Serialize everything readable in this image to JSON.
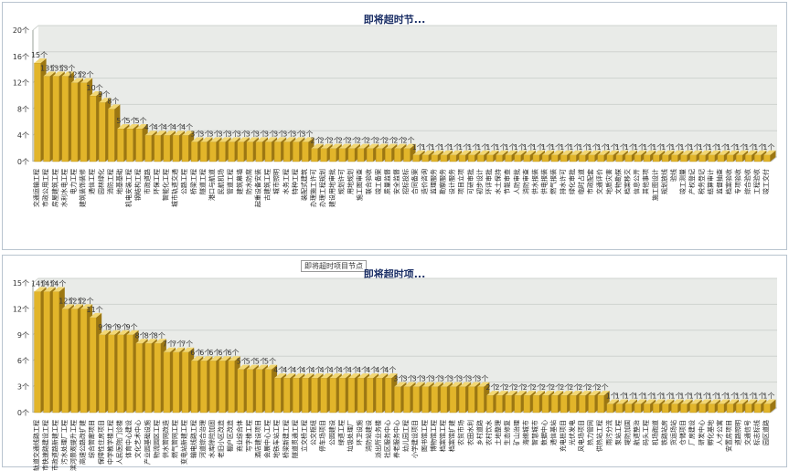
{
  "colors": {
    "bar_front": "#e2b52a",
    "bar_side": "#9c7712",
    "bar_top": "#f2d774",
    "plot_back": "#e9ebe8",
    "floor": "#c9ccc8",
    "grid": "#cfd3cf"
  },
  "chart_data": [
    {
      "type": "bar",
      "title": "即将超时节...",
      "ylim": [
        0,
        20
      ],
      "yticks": [
        0,
        4,
        8,
        12,
        16,
        20
      ],
      "value_suffix": "个",
      "grid": true,
      "categories": [
        "交通运输工程",
        "市政公用工程",
        "房屋建筑工程",
        "水利水电工程",
        "电力工程",
        "建筑装饰装修",
        "通信工程",
        "园林绿化",
        "消防工程",
        "地基基础",
        "机电安装工程",
        "钢结构工程",
        "市政道路",
        "环保工程",
        "智能化工程",
        "城市轨道交通",
        "公路工程",
        "桥梁工程",
        "隧道工程",
        "港口与航道",
        "民航机场",
        "管道工程",
        "建筑幕墙",
        "防水防腐",
        "起重设备安装",
        "古建筑工程",
        "城市照明",
        "水务工程",
        "特种工程",
        "装配式建筑",
        "办理施工许可",
        "办理工程规划",
        "建设用地审批",
        "规划许可",
        "用地规划",
        "施工图审查",
        "联合验收",
        "竣工备案",
        "质量监督",
        "安全监督",
        "招标投标",
        "合同备案",
        "造价咨询",
        "监理服务",
        "勘察服务",
        "设计服务",
        "项目立项",
        "可研审批",
        "初步设计",
        "环评审批",
        "水土保持",
        "节能审查",
        "人防审批",
        "消防审查",
        "供水报装",
        "供电报装",
        "燃气报装",
        "排水许可",
        "绿化审批",
        "临时占道",
        "市政配套",
        "交通评价",
        "地质灾害",
        "文物勘探",
        "档案移交",
        "信息公开",
        "其他事项",
        "施工图设计",
        "规划放线",
        "验线",
        "竣工测量",
        "产权登记",
        "税务登记",
        "结算审计",
        "监督抽查",
        "档案验收",
        "专项验收",
        "综合验收",
        "工程验收",
        "竣工交付"
      ],
      "values": [
        15,
        13,
        13,
        13,
        12,
        12,
        10,
        9,
        8,
        5,
        5,
        5,
        4,
        4,
        4,
        4,
        4,
        3,
        3,
        3,
        3,
        3,
        3,
        3,
        3,
        3,
        3,
        3,
        3,
        3,
        2,
        2,
        2,
        2,
        2,
        2,
        2,
        2,
        2,
        2,
        2,
        1,
        1,
        1,
        1,
        1,
        1,
        1,
        1,
        1,
        1,
        1,
        1,
        1,
        1,
        1,
        1,
        1,
        1,
        1,
        1,
        1,
        1,
        1,
        1,
        1,
        1,
        1,
        1,
        1,
        1,
        1,
        1,
        1,
        1,
        1,
        1,
        1,
        1,
        1
      ]
    },
    {
      "type": "bar",
      "title": "即将超时项...",
      "ylim": [
        0,
        15
      ],
      "yticks": [
        0,
        3,
        6,
        9,
        12,
        15
      ],
      "value_suffix": "个",
      "grid": true,
      "tooltip": "即将超时项目节点",
      "categories": [
        "轨道交通线路工程",
        "城市快速路建设工程",
        "市政道路新建工程",
        "污水处理厂工程",
        "滨河景观提升工程",
        "高速公路改扩建",
        "综合管廊项目",
        "保障性住房项目",
        "中学教学楼工程",
        "人民医院门诊楼",
        "体育中心建设",
        "文化艺术中心",
        "产业园基础设施",
        "物流园区工程",
        "供水管网改造",
        "燃气管网工程",
        "变电站新建工程",
        "输电线路工程",
        "河道综合治理",
        "水库除险加固",
        "老旧小区改造",
        "棚户区改造",
        "商业综合体",
        "写字楼工程",
        "酒店建设项目",
        "会展中心工程",
        "地铁车站工程",
        "桥梁新建工程",
        "隧道贯通工程",
        "立交桥工程",
        "公交枢纽",
        "停车场项目",
        "公园建设",
        "绿道工程",
        "垃圾处理厂",
        "环卫设施",
        "消防站建设",
        "派出所业务楼",
        "社区服务中心",
        "养老服务中心",
        "幼儿园工程",
        "小学建设项目",
        "图书馆工程",
        "博物馆工程",
        "档案馆工程",
        "档案馆扩建",
        "农贸市场",
        "农田水利",
        "乡村道路",
        "农村饮水",
        "土地整理",
        "生态修复",
        "矿山治理",
        "海绵城市",
        "智慧城市",
        "数据中心",
        "通信基站",
        "充电桩项目",
        "光伏发电",
        "风电场项目",
        "热力管网",
        "供热站工程",
        "雨污分流",
        "泵站工程",
        "堤防加固",
        "航道整治",
        "码头工程",
        "机场跑道",
        "铁路站房",
        "货运场站",
        "仓储项目",
        "厂房建设",
        "研发中心",
        "孵化基地",
        "人才公寓",
        "安置房项目",
        "道路照明",
        "交通信号",
        "标志标线",
        "园区道路"
      ],
      "values": [
        14,
        14,
        14,
        12,
        12,
        12,
        11,
        9,
        9,
        9,
        9,
        8,
        8,
        8,
        7,
        7,
        7,
        6,
        6,
        6,
        6,
        6,
        5,
        5,
        5,
        5,
        4,
        4,
        4,
        4,
        4,
        4,
        4,
        4,
        4,
        4,
        4,
        4,
        4,
        3,
        3,
        3,
        3,
        3,
        3,
        3,
        3,
        3,
        3,
        2,
        2,
        2,
        2,
        2,
        2,
        2,
        2,
        2,
        2,
        2,
        2,
        2,
        1,
        1,
        1,
        1,
        1,
        1,
        1,
        1,
        1,
        1,
        1,
        1,
        1,
        1,
        1,
        1,
        1,
        1
      ]
    }
  ]
}
